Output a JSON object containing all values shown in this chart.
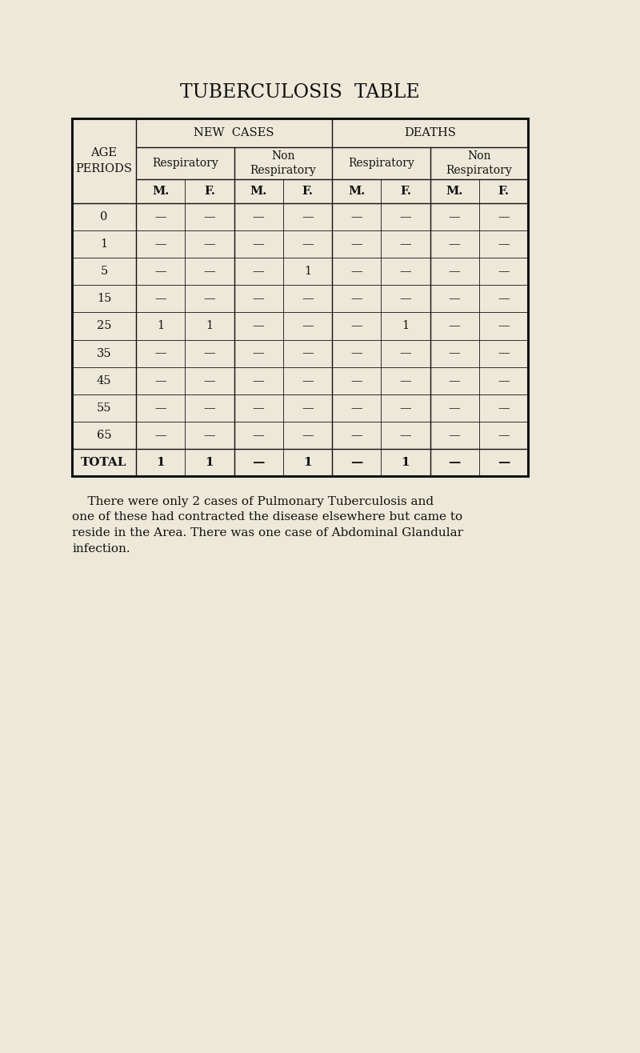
{
  "title": "TUBERCULOSIS  TABLE",
  "background_color": "#ede8d8",
  "age_periods": [
    "0",
    "1",
    "5",
    "15",
    "25",
    "35",
    "45",
    "55",
    "65",
    "TOTAL"
  ],
  "table_data": [
    [
      "—",
      "—",
      "—",
      "—",
      "—",
      "—",
      "—",
      "—"
    ],
    [
      "—",
      "—",
      "—",
      "—",
      "—",
      "—",
      "—",
      "—"
    ],
    [
      "—",
      "—",
      "—",
      "1",
      "—",
      "—",
      "—",
      "—"
    ],
    [
      "—",
      "—",
      "—",
      "—",
      "—",
      "—",
      "—",
      "—"
    ],
    [
      "1",
      "1",
      "—",
      "—",
      "—",
      "1",
      "—",
      "—"
    ],
    [
      "—",
      "—",
      "—",
      "—",
      "—",
      "—",
      "—",
      "—"
    ],
    [
      "—",
      "—",
      "—",
      "—",
      "—",
      "—",
      "—",
      "—"
    ],
    [
      "—",
      "—",
      "—",
      "—",
      "—",
      "—",
      "—",
      "—"
    ],
    [
      "—",
      "—",
      "—",
      "—",
      "—",
      "—",
      "—",
      "—"
    ],
    [
      "1",
      "1",
      "—",
      "1",
      "—",
      "1",
      "—",
      "—"
    ]
  ],
  "footnote_line1": "    There were only 2 cases of Pulmonary Tuberculosis and",
  "footnote_line2": "one of these had contracted the disease elsewhere but came to",
  "footnote_line3": "reside in the Area. There was one case of Abdominal Glandular",
  "footnote_line4": "infection.",
  "title_fontsize": 17,
  "header_fontsize": 10.5,
  "cell_fontsize": 10.5,
  "footnote_fontsize": 11
}
